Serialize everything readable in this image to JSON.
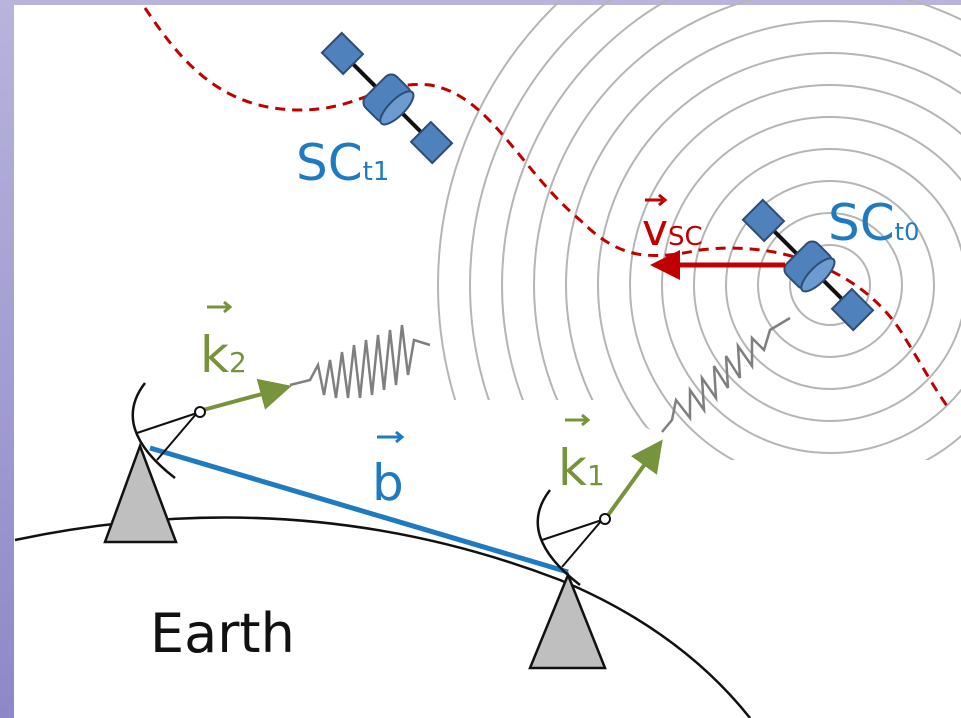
{
  "labels": [
    {
      "text": "SC",
      "sub": "t1"
    },
    {
      "text": "SC",
      "sub": "t0"
    },
    {
      "text": "v",
      "sub": "SC"
    },
    {
      "text": "k",
      "sub": "2"
    },
    {
      "text": "k",
      "sub": "1"
    },
    {
      "text": "b"
    },
    {
      "text": "Earth"
    }
  ]
}
